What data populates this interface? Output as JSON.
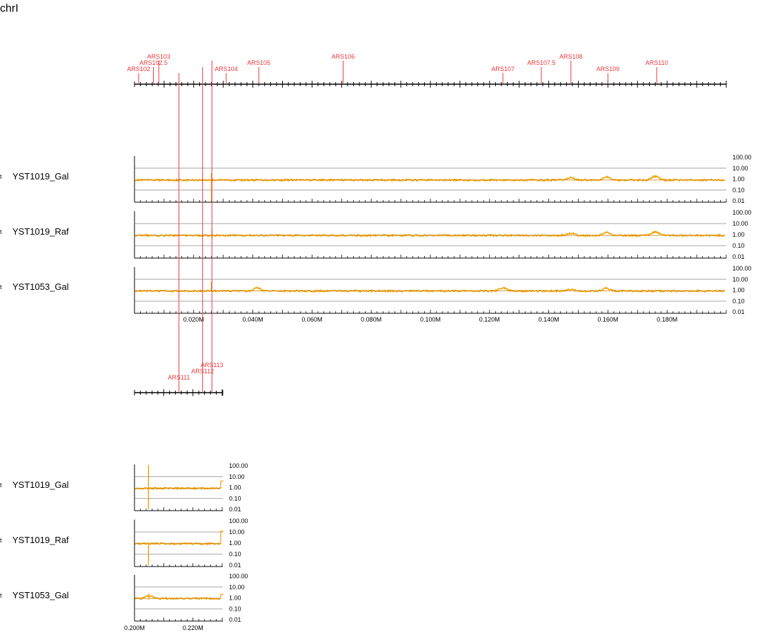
{
  "chromosome": "chrI",
  "colors": {
    "signal": "#f2a100",
    "baseline": "#c87800",
    "ars": "#e8383d",
    "axis": "#000000",
    "grid": "#888888"
  },
  "chart_data": [
    {
      "type": "line",
      "panel": 1,
      "x_range_bp": [
        0,
        200000
      ],
      "x_ticks_labels": [
        "0.020M",
        "0.040M",
        "0.060M",
        "0.080M",
        "0.100M",
        "0.120M",
        "0.140M",
        "0.160M",
        "0.180M"
      ],
      "x_ticks_bp": [
        20000,
        40000,
        60000,
        80000,
        100000,
        120000,
        140000,
        160000,
        180000
      ],
      "y_scale": "log",
      "y_tick_labels": [
        "100.00",
        "10.00",
        "1.00",
        "0.10",
        "0.01"
      ],
      "ars": [
        {
          "name": "ARS102",
          "pos": 1400,
          "row": 2
        },
        {
          "name": "ARS102.5",
          "pos": 6400,
          "row": 1
        },
        {
          "name": "ARS103",
          "pos": 8200,
          "row": 0
        },
        {
          "name": "ARS104",
          "pos": 31000,
          "row": 2
        },
        {
          "name": "ARS105",
          "pos": 42000,
          "row": 1
        },
        {
          "name": "ARS106",
          "pos": 70500,
          "row": 0
        },
        {
          "name": "ARS107",
          "pos": 124500,
          "row": 2
        },
        {
          "name": "ARS107.5",
          "pos": 137500,
          "row": 1
        },
        {
          "name": "ARS108",
          "pos": 147500,
          "row": 0
        },
        {
          "name": "ARS109",
          "pos": 160000,
          "row": 2
        },
        {
          "name": "ARS110",
          "pos": 176500,
          "row": 1
        }
      ],
      "series": [
        {
          "name": "YST1019_Gal",
          "base": 0.82,
          "bumps": [
            {
              "pos": 147500,
              "amp": 1.7
            },
            {
              "pos": 159500,
              "amp": 2.0
            },
            {
              "pos": 176000,
              "amp": 2.2
            }
          ],
          "spike": {
            "pos": 26000,
            "up": 3.5,
            "down": 0.01
          }
        },
        {
          "name": "YST1019_Raf",
          "base": 0.85,
          "bumps": [
            {
              "pos": 147500,
              "amp": 1.6
            },
            {
              "pos": 159500,
              "amp": 1.9
            },
            {
              "pos": 176000,
              "amp": 2.1
            }
          ],
          "spike": {
            "pos": 26200,
            "up": 2.6,
            "down": 0.35
          }
        },
        {
          "name": "YST1053_Gal",
          "base": 0.85,
          "bumps": [
            {
              "pos": 41500,
              "amp": 1.9
            },
            {
              "pos": 124500,
              "amp": 2.0
            },
            {
              "pos": 147500,
              "amp": 1.4
            },
            {
              "pos": 159500,
              "amp": 1.8
            }
          ],
          "spike": {
            "pos": 26000,
            "up": 6.0,
            "down": 0.8
          }
        }
      ]
    },
    {
      "type": "line",
      "panel": 2,
      "x_range_bp": [
        200000,
        230218
      ],
      "x_ticks_labels": [
        "0.200M",
        "0.220M"
      ],
      "x_ticks_bp": [
        200000,
        220000
      ],
      "y_scale": "log",
      "y_tick_labels": [
        "100.00",
        "10.00",
        "1.00",
        "0.10",
        "0.01"
      ],
      "ars": [
        {
          "name": "ARS111",
          "pos": 215200,
          "row": 2
        },
        {
          "name": "ARS112",
          "pos": 223300,
          "row": 1
        },
        {
          "name": "ARS113",
          "pos": 226500,
          "row": 0
        }
      ],
      "series": [
        {
          "name": "YST1019_Gal",
          "base": 0.85,
          "bumps": [],
          "spike": {
            "pos": 204800,
            "up": 120,
            "down": 0.01
          },
          "end_jump": 4.0
        },
        {
          "name": "YST1019_Raf",
          "base": 0.9,
          "bumps": [],
          "spike": {
            "pos": 204800,
            "up": 1.2,
            "down": 0.01
          },
          "end_jump": 12.0
        },
        {
          "name": "YST1053_Gal",
          "base": 0.9,
          "bumps": [
            {
              "pos": 205000,
              "amp": 1.8
            }
          ],
          "spike": {
            "pos": 204900,
            "up": 2.5,
            "down": 0.7
          },
          "end_jump": 2.2
        }
      ]
    }
  ]
}
